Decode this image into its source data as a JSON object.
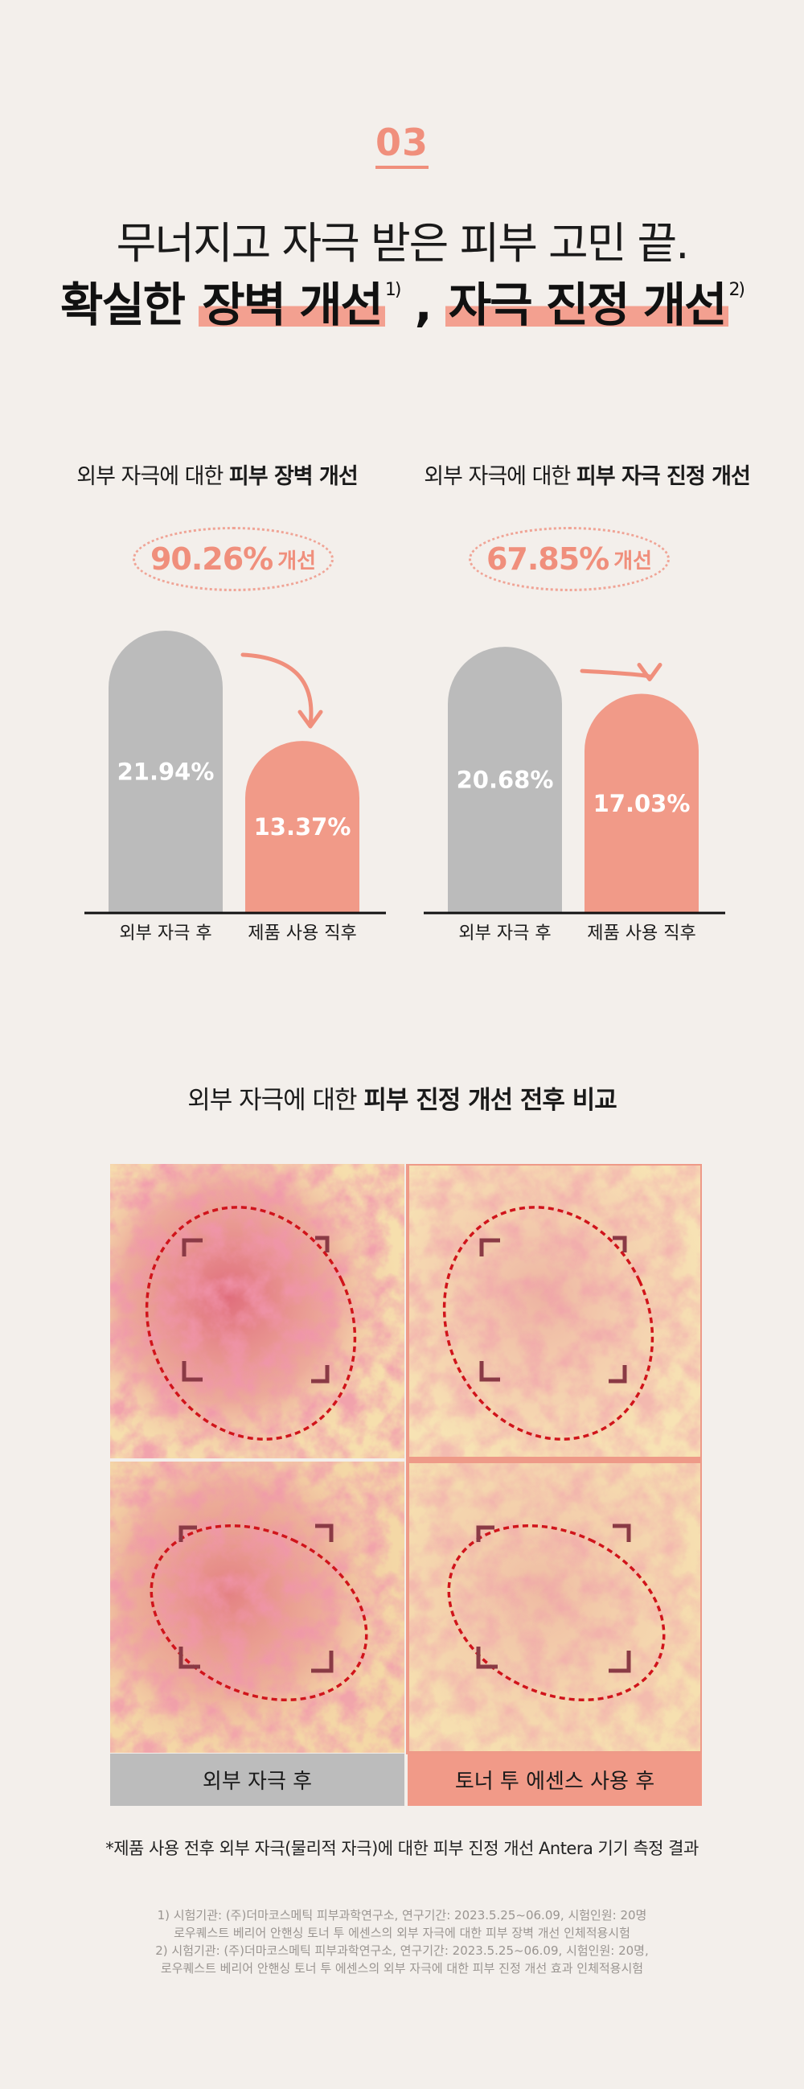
{
  "header": {
    "section_number": "03",
    "line1": "무너지고 자극 받은 피부 고민 끝.",
    "line2_prefix": "확실한 ",
    "highlight1": "장벽 개선",
    "sup1": "1)",
    "separator": " , ",
    "highlight2": "자극 진정 개선",
    "sup2": "2)"
  },
  "charts": [
    {
      "title_prefix": "외부 자극에 대한 ",
      "title_bold": "피부 장벽 개선",
      "badge_value": "90.26%",
      "badge_suffix": "개선",
      "bar_labels": [
        "21.94%",
        "13.37%"
      ]
    },
    {
      "title_prefix": "외부 자극에 대한 ",
      "title_bold": "피부 자극 진정 개선",
      "badge_value": "67.85%",
      "badge_suffix": "개선",
      "bar_labels": [
        "20.68%",
        "17.03%"
      ]
    }
  ],
  "chart_data": [
    {
      "type": "bar",
      "title": "외부 자극에 대한 피부 장벽 개선",
      "categories": [
        "외부 자극 후",
        "제품 사용 직후"
      ],
      "values": [
        21.94,
        13.37
      ],
      "unit": "%",
      "improvement": "90.26%"
    },
    {
      "type": "bar",
      "title": "외부 자극에 대한 피부 자극 진정 개선",
      "categories": [
        "외부 자극 후",
        "제품 사용 직후"
      ],
      "values": [
        20.68,
        17.03
      ],
      "unit": "%",
      "improvement": "67.85%"
    }
  ],
  "colors": {
    "bar_before": "#bbbbbb",
    "bar_after": "#f19a88",
    "accent": "#f08f7c",
    "background": "#f3efeb"
  },
  "comparison": {
    "title_prefix": "외부 자극에 대한 ",
    "title_bold": "피부 진정 개선 전후 비교",
    "caption_before": "외부 자극 후",
    "caption_after": "토너 투 에센스 사용 후"
  },
  "footnote": {
    "note": "*제품 사용 전후 외부 자극(물리적 자극)에 대한 피부 진정 개선 Antera 기기 측정 결과",
    "ref1_line1": "1) 시험기관: (주)더마코스메틱 피부과학연구소, 연구기간: 2023.5.25~06.09, 시험인원: 20명",
    "ref1_line2": "로우퀘스트 베리어 안핸싱 토너 투 에센스의 외부 자극에 대한 피부 장벽 개선 인체적용시험",
    "ref2_line1": "2) 시험기관: (주)더마코스메틱 피부과학연구소, 연구기간: 2023.5.25~06.09, 시험인원: 20명,",
    "ref2_line2": "로우퀘스트 베리어 안핸싱 토너 투 에센스의 외부 자극에 대한 피부 진정 개선 효과 인체적용시험"
  }
}
